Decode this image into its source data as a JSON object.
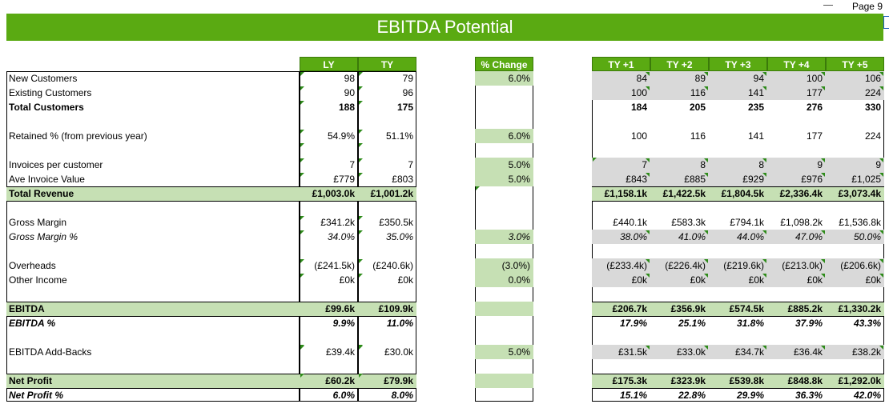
{
  "page_label": "Page 9",
  "title": "EBITDA Potential",
  "headers": {
    "ly": "LY",
    "ty": "TY",
    "pct": "% Change",
    "proj": [
      "TY +1",
      "TY +2",
      "TY +3",
      "TY +4",
      "TY +5"
    ]
  },
  "rows": [
    {
      "label": "New Customers",
      "ly": "98",
      "ty": "79",
      "pct": "6.0%",
      "proj": [
        "84",
        "89",
        "94",
        "100",
        "106"
      ]
    },
    {
      "label": "Existing Customers",
      "ly": "90",
      "ty": "96",
      "pct": "",
      "proj": [
        "100",
        "116",
        "141",
        "177",
        "224"
      ]
    },
    {
      "label": "Total Customers",
      "ly": "188",
      "ty": "175",
      "pct": "",
      "proj": [
        "184",
        "205",
        "235",
        "276",
        "330"
      ]
    },
    {
      "label": "Retained % (from previous year)",
      "ly": "54.9%",
      "ty": "51.1%",
      "pct": "6.0%",
      "proj": [
        "100",
        "116",
        "141",
        "177",
        "224"
      ]
    },
    {
      "label": "Invoices per customer",
      "ly": "7",
      "ty": "7",
      "pct": "5.0%",
      "proj": [
        "7",
        "8",
        "8",
        "9",
        "9"
      ]
    },
    {
      "label": "Ave Invoice Value",
      "ly": "£779",
      "ty": "£803",
      "pct": "5.0%",
      "proj": [
        "£843",
        "£885",
        "£929",
        "£976",
        "£1,025"
      ]
    },
    {
      "label": "Total Revenue",
      "ly": "£1,003.0k",
      "ty": "£1,001.2k",
      "pct": "",
      "proj": [
        "£1,158.1k",
        "£1,422.5k",
        "£1,804.5k",
        "£2,336.4k",
        "£3,073.4k"
      ]
    },
    {
      "label": "Gross Margin",
      "ly": "£341.2k",
      "ty": "£350.5k",
      "pct": "",
      "proj": [
        "£440.1k",
        "£583.3k",
        "£794.1k",
        "£1,098.2k",
        "£1,536.8k"
      ]
    },
    {
      "label": "Gross Margin %",
      "ly": "34.0%",
      "ty": "35.0%",
      "pct": "3.0%",
      "proj": [
        "38.0%",
        "41.0%",
        "44.0%",
        "47.0%",
        "50.0%"
      ]
    },
    {
      "label": "Overheads",
      "ly": "(£241.5k)",
      "ty": "(£240.6k)",
      "pct": "(3.0%)",
      "proj": [
        "(£233.4k)",
        "(£226.4k)",
        "(£219.6k)",
        "(£213.0k)",
        "(£206.6k)"
      ]
    },
    {
      "label": "Other Income",
      "ly": "£0k",
      "ty": "£0k",
      "pct": "0.0%",
      "proj": [
        "£0k",
        "£0k",
        "£0k",
        "£0k",
        "£0k"
      ]
    },
    {
      "label": "EBITDA",
      "ly": "£99.6k",
      "ty": "£109.9k",
      "pct": "",
      "proj": [
        "£206.7k",
        "£356.9k",
        "£574.5k",
        "£885.2k",
        "£1,330.2k"
      ]
    },
    {
      "label": "EBITDA %",
      "ly": "9.9%",
      "ty": "11.0%",
      "pct": "",
      "proj": [
        "17.9%",
        "25.1%",
        "31.8%",
        "37.9%",
        "43.3%"
      ]
    },
    {
      "label": "EBITDA Add-Backs",
      "ly": "£39.4k",
      "ty": "£30.0k",
      "pct": "5.0%",
      "proj": [
        "£31.5k",
        "£33.0k",
        "£34.7k",
        "£36.4k",
        "£38.2k"
      ]
    },
    {
      "label": "Net Profit",
      "ly": "£60.2k",
      "ty": "£79.9k",
      "pct": "",
      "proj": [
        "£175.3k",
        "£323.9k",
        "£539.8k",
        "£848.8k",
        "£1,292.0k"
      ]
    },
    {
      "label": "Net Profit %",
      "ly": "6.0%",
      "ty": "8.0%",
      "pct": "",
      "proj": [
        "15.1%",
        "22.8%",
        "29.9%",
        "36.3%",
        "42.0%"
      ]
    }
  ]
}
